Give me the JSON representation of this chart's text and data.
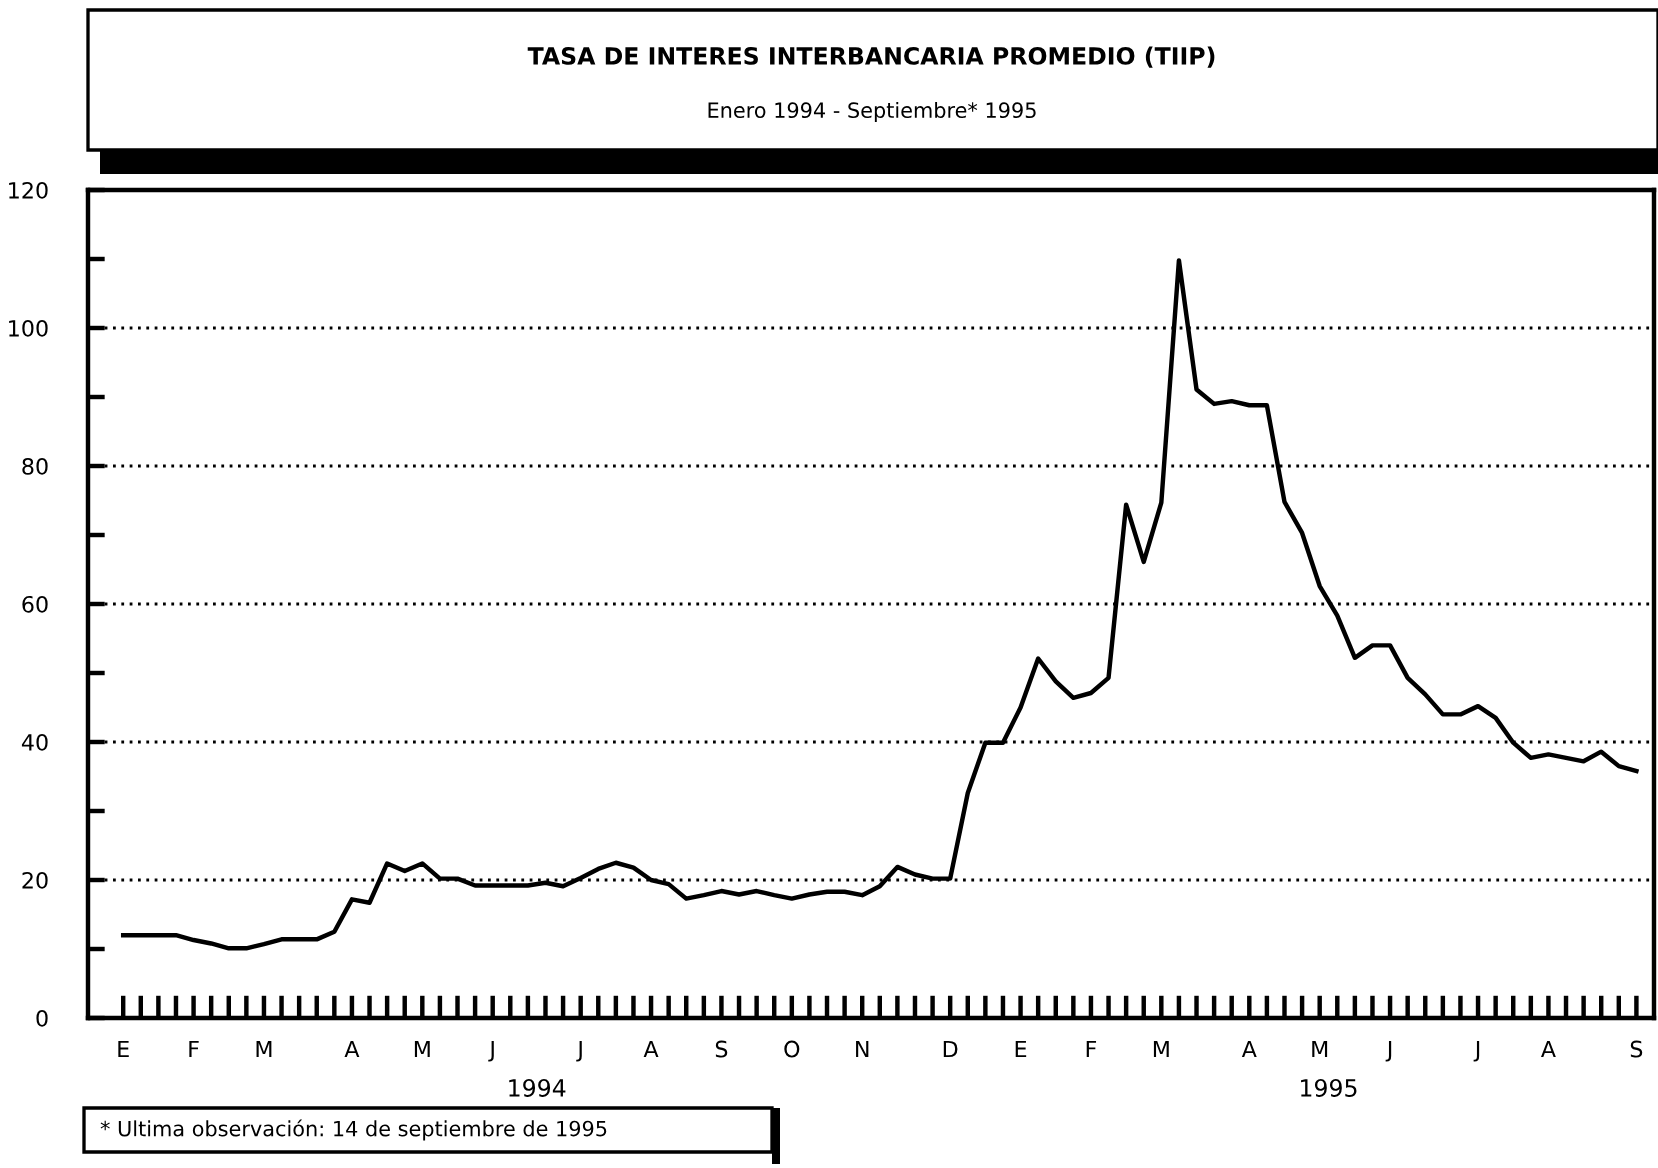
{
  "chart_data": {
    "type": "line",
    "title": "TASA DE INTERES INTERBANCARIA PROMEDIO (TIIP)",
    "subtitle": "Enero 1994 - Septiembre* 1995",
    "categories": [
      "E",
      null,
      null,
      null,
      "F",
      null,
      null,
      null,
      "M",
      null,
      null,
      null,
      null,
      "A",
      null,
      null,
      null,
      "M",
      null,
      null,
      null,
      "J",
      null,
      null,
      null,
      null,
      "J",
      null,
      null,
      null,
      "A",
      null,
      null,
      null,
      "S",
      null,
      null,
      null,
      "O",
      null,
      null,
      null,
      "N",
      null,
      null,
      null,
      null,
      "D",
      null,
      null,
      null,
      "E",
      null,
      null,
      null,
      "F",
      null,
      null,
      null,
      "M",
      null,
      null,
      null,
      null,
      "A",
      null,
      null,
      null,
      "M",
      null,
      null,
      null,
      "J",
      null,
      null,
      null,
      null,
      "J",
      null,
      null,
      null,
      "A",
      null,
      null,
      null,
      null,
      "S"
    ],
    "series": [
      {
        "color": "#000000",
        "values": [
          12,
          12,
          12,
          12,
          11.3,
          10.8,
          10.1,
          10.1,
          10.7,
          11.4,
          11.4,
          11.4,
          12.5,
          17.2,
          16.7,
          22.4,
          21.3,
          22.4,
          20.2,
          20.2,
          19.2,
          19.2,
          19.2,
          19.2,
          19.6,
          19.1,
          20.3,
          21.6,
          22.5,
          21.8,
          20.0,
          19.4,
          17.3,
          17.8,
          18.4,
          17.9,
          18.4,
          17.8,
          17.3,
          17.9,
          18.3,
          18.3,
          17.8,
          19.1,
          21.9,
          20.8,
          20.2,
          20.2,
          32.6,
          39.9,
          39.9,
          45,
          52.1,
          48.8,
          46.4,
          47.1,
          49.3,
          74.4,
          66.1,
          74.7,
          109.8,
          91.1,
          89,
          89.4,
          88.8,
          88.8,
          74.8,
          70.3,
          62.6,
          58.3,
          52.2,
          54,
          54,
          49.3,
          46.9,
          44,
          44,
          45.2,
          43.5,
          39.9,
          37.7,
          38.2,
          37.7,
          37.2,
          38.6,
          36.5,
          35.8
        ]
      }
    ],
    "ylim": [
      0,
      120
    ],
    "yticks": [
      0,
      {
        "value": 10,
        "label": null
      },
      20,
      {
        "value": 30,
        "label": null
      },
      40,
      {
        "value": 50,
        "label": null
      },
      60,
      {
        "value": 70,
        "label": null
      },
      80,
      {
        "value": 90,
        "label": null
      },
      100,
      {
        "value": 110,
        "label": null
      },
      120
    ],
    "grid": "y",
    "line_style": "solid",
    "marker": "none",
    "annotations": [
      "1994",
      "1995",
      "* Ultima observación: 14 de septiembre de 1995"
    ]
  }
}
